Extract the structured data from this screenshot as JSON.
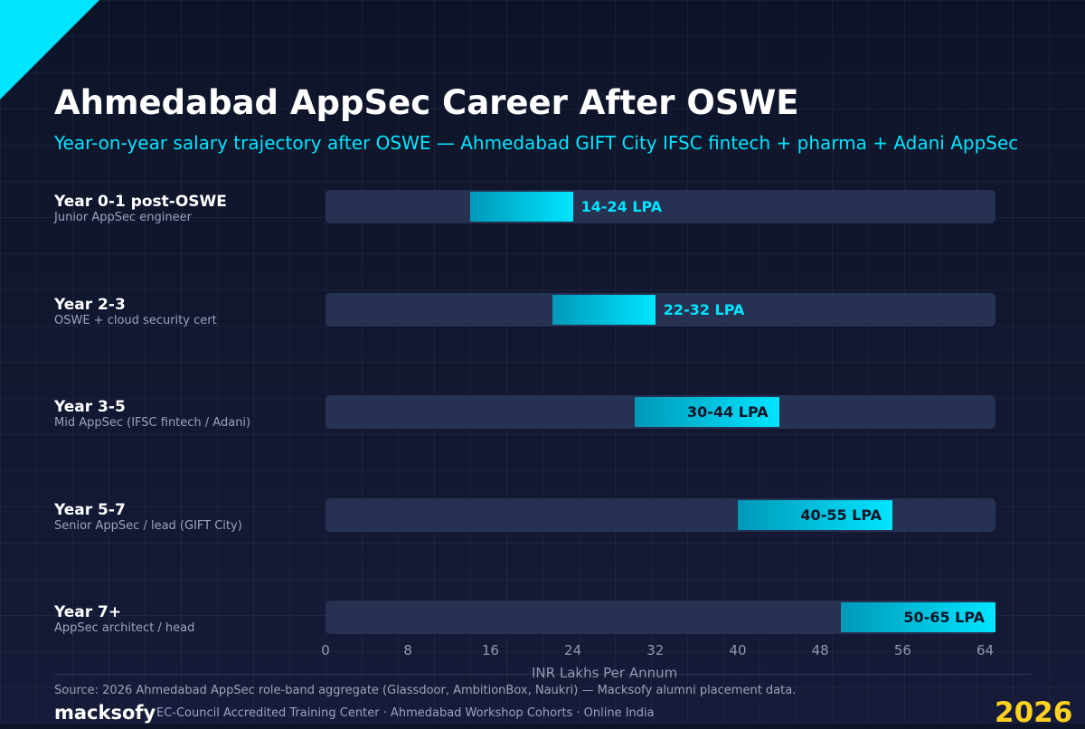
{
  "colors": {
    "accent": "#00e5ff",
    "bar_start": "#0099b8",
    "bar_end": "#00e5ff",
    "track": "#273152",
    "year_badge": "#ffd21f"
  },
  "header": {
    "title": "Ahmedabad AppSec Career After OSWE",
    "subtitle": "Year-on-year salary trajectory after OSWE — Ahmedabad GIFT City IFSC fintech + pharma + Adani AppSec"
  },
  "chart_data": {
    "type": "bar",
    "orientation": "horizontal",
    "subtype": "range",
    "categories": [
      "Year 0-1 post-OSWE",
      "Year 2-3",
      "Year 3-5",
      "Year 5-7",
      "Year 7+"
    ],
    "descriptions": [
      "Junior AppSec engineer",
      "OSWE + cloud security cert",
      "Mid AppSec (IFSC fintech / Adani)",
      "Senior AppSec / lead (GIFT City)",
      "AppSec architect / head"
    ],
    "ranges": [
      [
        14,
        24
      ],
      [
        22,
        32
      ],
      [
        30,
        44
      ],
      [
        40,
        55
      ],
      [
        50,
        65
      ]
    ],
    "data_labels": [
      "14-24 LPA",
      "22-32 LPA",
      "30-44 LPA",
      "40-55 LPA",
      "50-65 LPA"
    ],
    "xlabel": "INR Lakhs Per Annum",
    "xlim": [
      0,
      65
    ],
    "xticks": [
      "0",
      "8",
      "16",
      "24",
      "32",
      "40",
      "48",
      "56",
      "64"
    ],
    "xtick_values": [
      0,
      8,
      16,
      24,
      32,
      40,
      48,
      56,
      64
    ],
    "grid": true
  },
  "footer": {
    "source": "Source: 2026 Ahmedabad AppSec role-band aggregate (Glassdoor, AmbitionBox, Naukri) — Macksofy alumni placement data.",
    "brand": "macksofy",
    "tagline": "EC-Council Accredited Training Center · Ahmedabad Workshop Cohorts · Online India",
    "year": "2026"
  }
}
